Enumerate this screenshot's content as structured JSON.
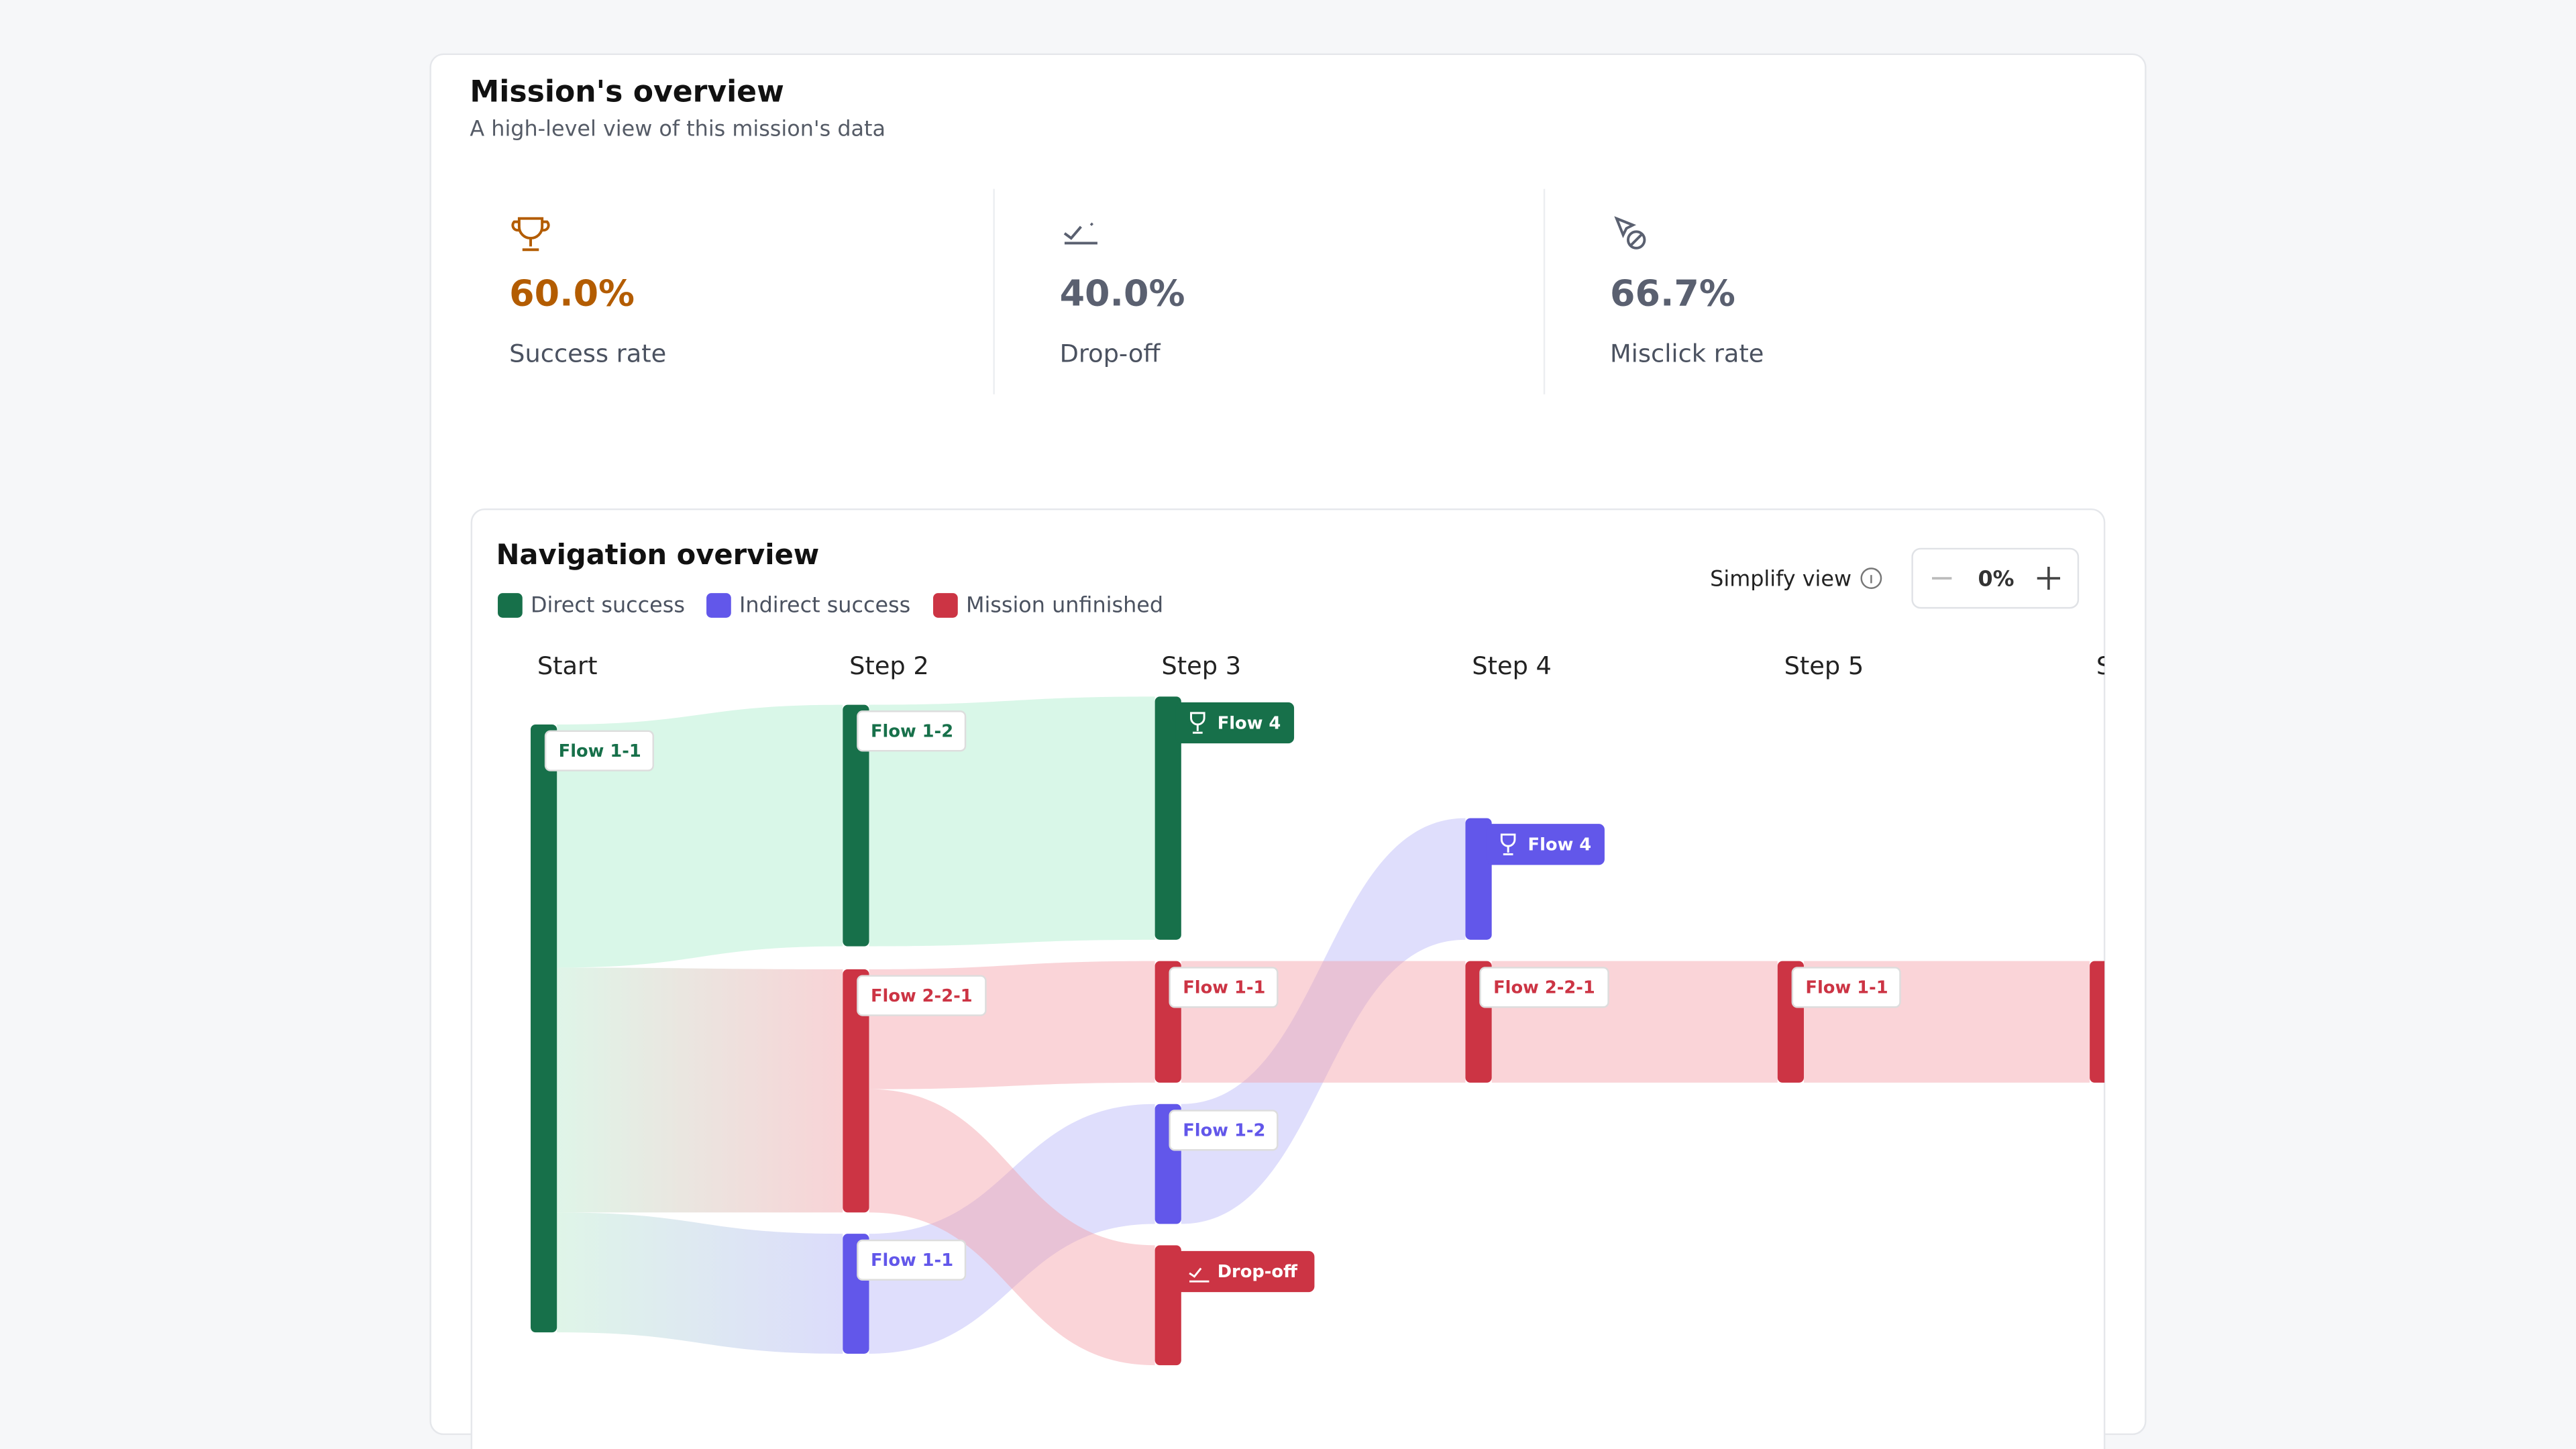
{
  "header": {
    "title": "Mission's overview",
    "subtitle": "A high-level view of this mission's data"
  },
  "metrics": [
    {
      "value": "60.0%",
      "label": "Success rate"
    },
    {
      "value": "40.0%",
      "label": "Drop-off"
    },
    {
      "value": "66.7%",
      "label": "Misclick rate"
    }
  ],
  "navigation": {
    "title": "Navigation overview",
    "legend": [
      "Direct success",
      "Indirect success",
      "Mission unfinished"
    ],
    "simplify": {
      "label": "Simplify view",
      "value": "0%"
    },
    "steps": [
      "Start",
      "Step 2",
      "Step 3",
      "Step 4",
      "Step 5",
      "S"
    ],
    "nodes": [
      "Flow 1-1",
      "Flow 1-2",
      "Flow 2-2-1",
      "Flow 1-1",
      "Flow 4",
      "Flow 1-1",
      "Flow 1-2",
      "Drop-off",
      "Flow 4",
      "Flow 2-2-1",
      "Flow 1-1"
    ]
  }
}
